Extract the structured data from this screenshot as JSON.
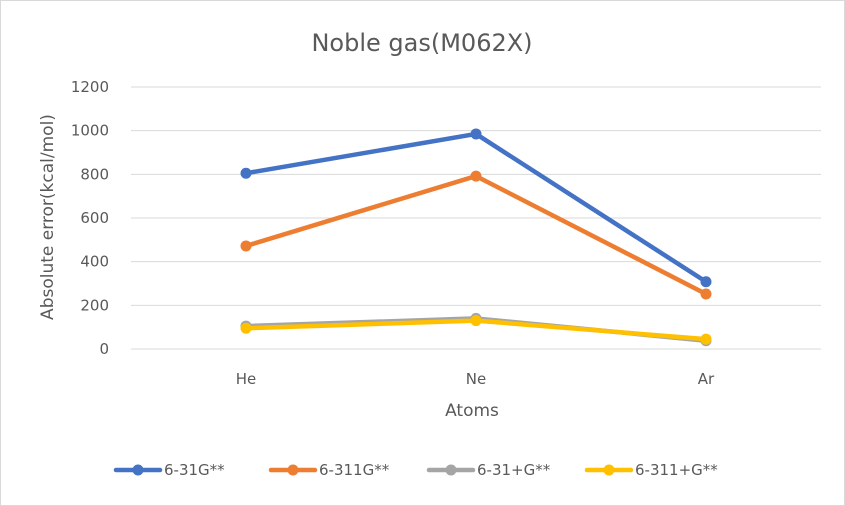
{
  "chart_data": {
    "type": "line",
    "title": "Noble gas(M062X)",
    "xlabel": "Atoms",
    "ylabel": "Absolute error(kcal/mol)",
    "categories": [
      "He",
      "Ne",
      "Ar"
    ],
    "ylim": [
      0,
      1200
    ],
    "yticks": [
      0,
      200,
      400,
      600,
      800,
      1000,
      1200
    ],
    "grid": true,
    "legend_position": "bottom",
    "series": [
      {
        "name": "6-31G**",
        "values": [
          805,
          985,
          308
        ],
        "color": "#4472c4"
      },
      {
        "name": "6-311G**",
        "values": [
          472,
          792,
          252
        ],
        "color": "#ed7d31"
      },
      {
        "name": "6-31+G**",
        "values": [
          105,
          140,
          38
        ],
        "color": "#a5a5a5"
      },
      {
        "name": "6-311+G**",
        "values": [
          95,
          130,
          45
        ],
        "color": "#ffc000"
      }
    ]
  }
}
